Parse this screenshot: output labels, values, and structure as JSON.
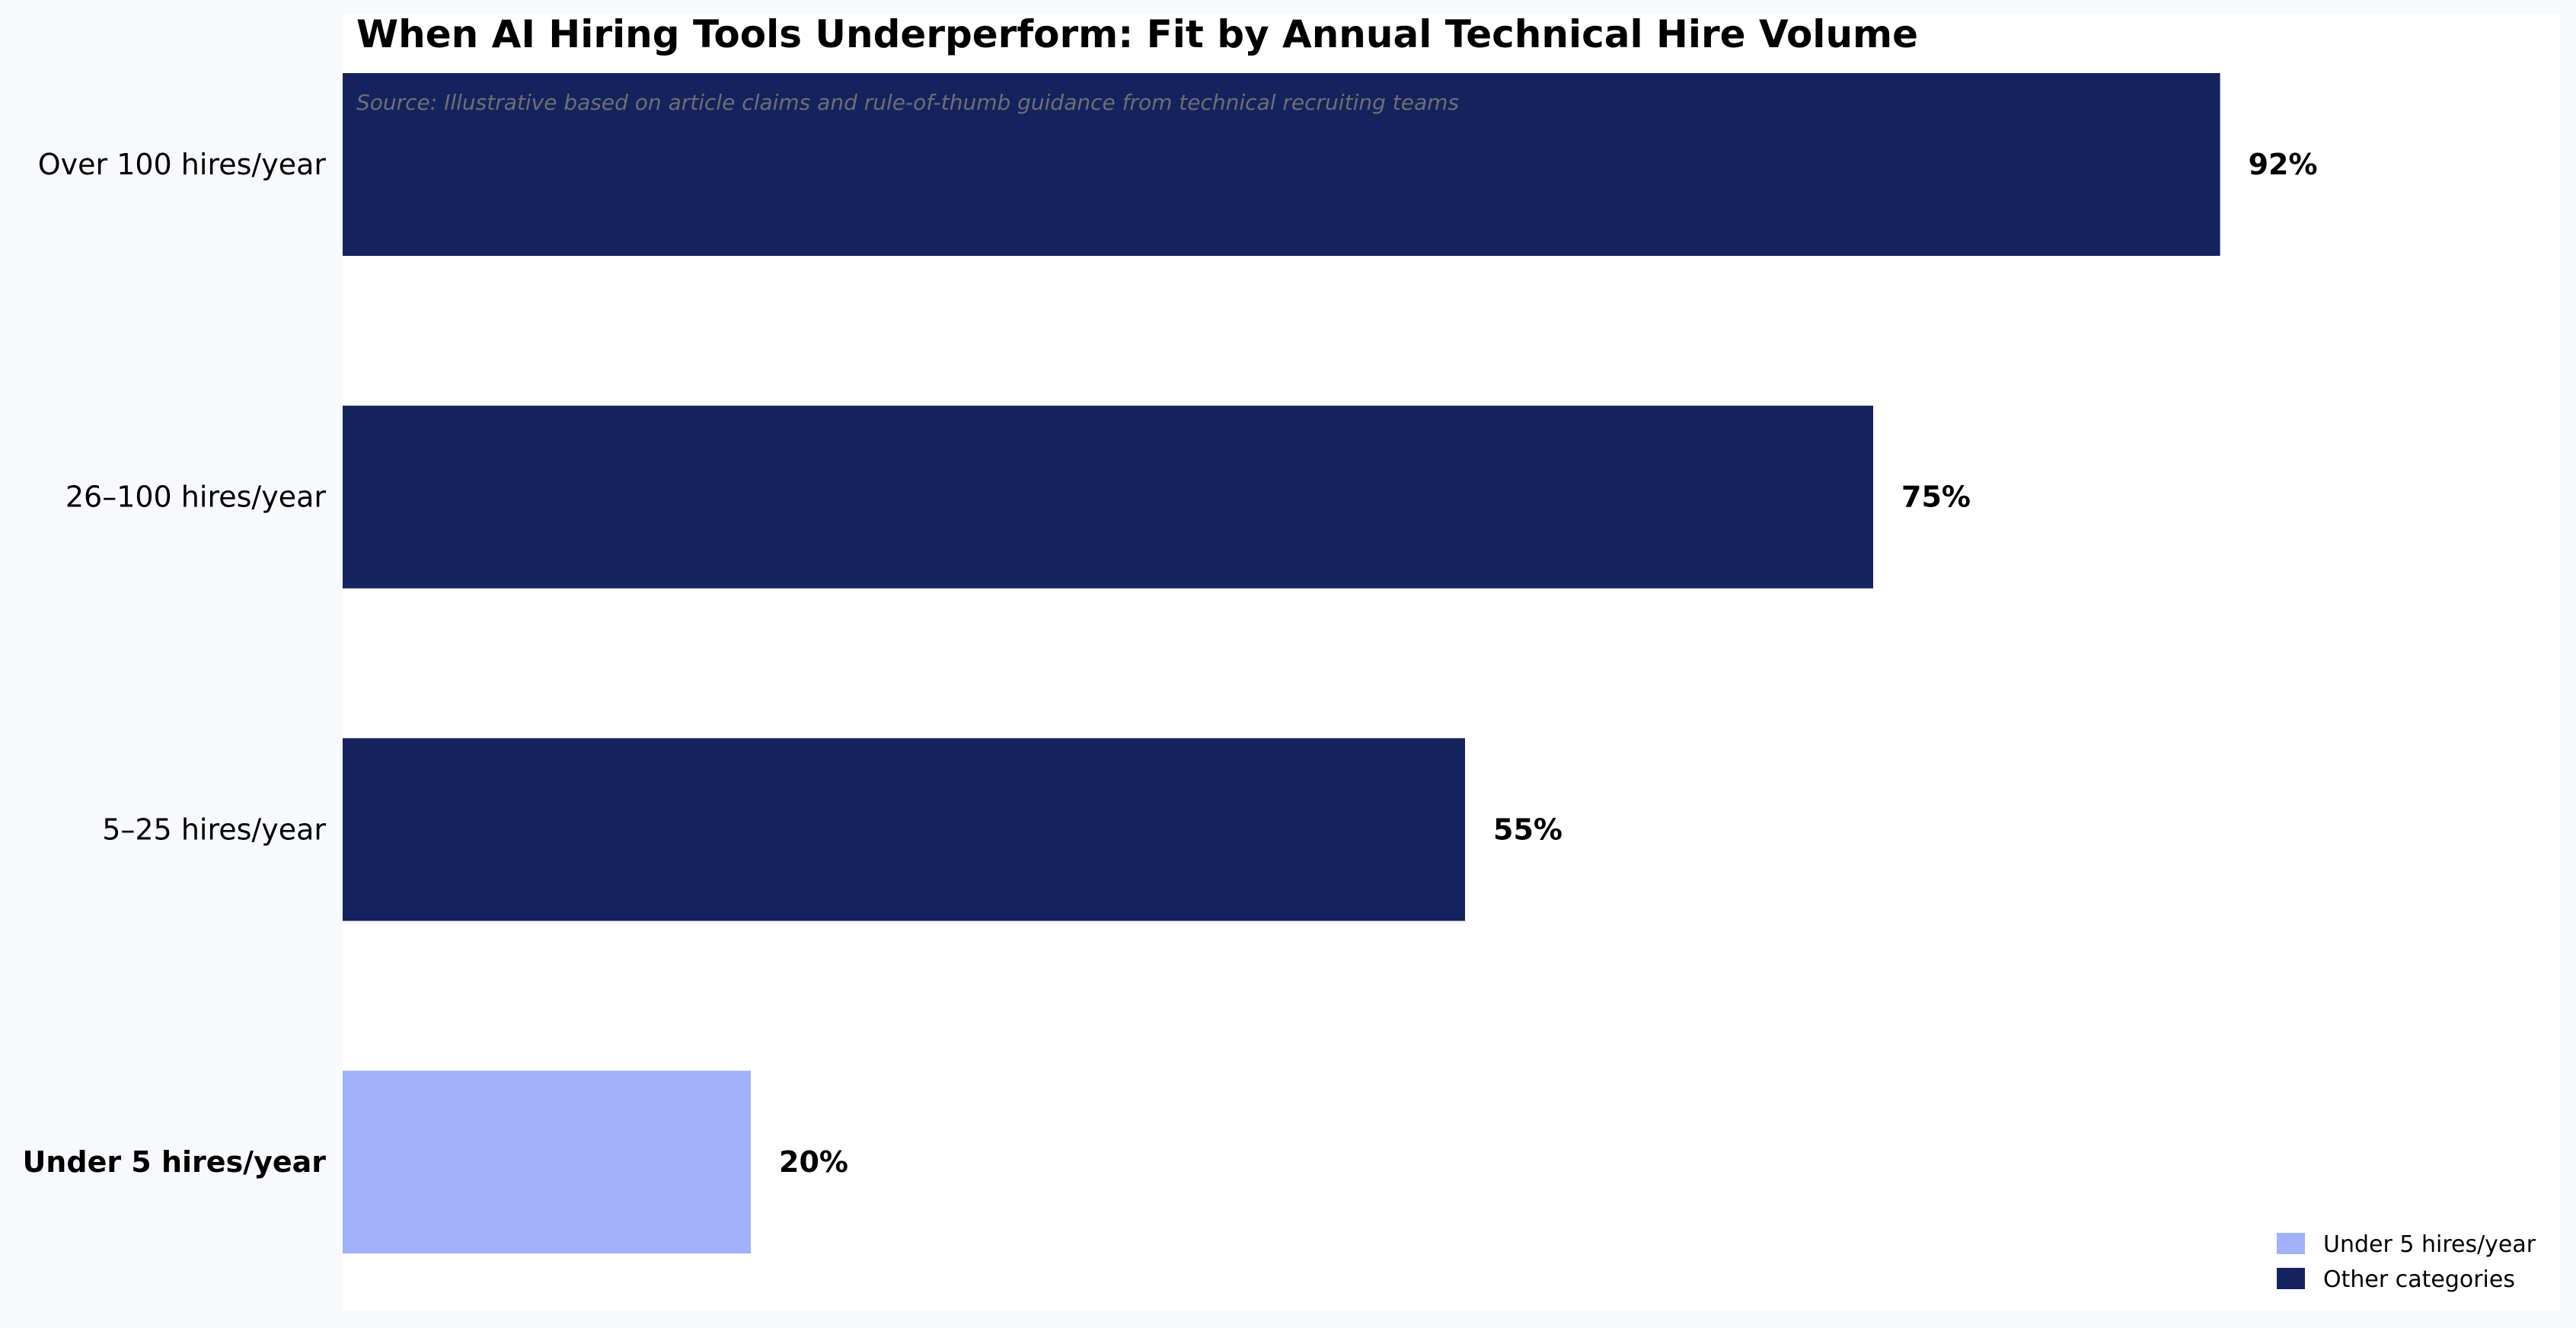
{
  "chart_data": {
    "type": "bar",
    "orientation": "horizontal",
    "title": "When AI Hiring Tools Underperform: Fit by Annual Technical Hire Volume",
    "subtitle": "Source: Illustrative based on article claims and rule-of-thumb guidance from technical recruiting teams",
    "xlabel": "",
    "ylabel": "",
    "xlim": [
      0,
      100
    ],
    "grid": false,
    "x_axis_visible": false,
    "value_format": "{v}%",
    "categories": [
      "Over 100 hires/year",
      "26–100 hires/year",
      "5–25 hires/year",
      "Under 5 hires/year"
    ],
    "values": [
      92,
      75,
      55,
      20
    ],
    "highlight": "Under 5 hires/year",
    "colors": {
      "highlight": "#a0b0fb",
      "other": "#14235e",
      "plot_background": "#ffffff",
      "page_background": "#f7f9fd"
    },
    "legend": {
      "position": "bottom-right",
      "entries": [
        {
          "label": "Under 5 hires/year",
          "color": "#a0b0fb"
        },
        {
          "label": "Other categories",
          "color": "#14235e"
        }
      ]
    }
  }
}
